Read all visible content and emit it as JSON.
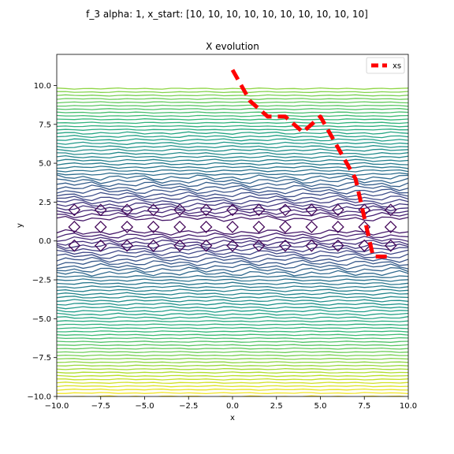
{
  "figure": {
    "suptitle": "f_3 alpha: 1, x_start: [10, 10, 10, 10, 10, 10, 10, 10, 10, 10]"
  },
  "chart_data": {
    "type": "line",
    "title": "X evolution",
    "xlabel": "x",
    "ylabel": "y",
    "xlim": [
      -10,
      10
    ],
    "ylim": [
      -10,
      12
    ],
    "xticks": [
      -10,
      -7.5,
      -5,
      -2.5,
      0,
      2.5,
      5,
      7.5,
      10
    ],
    "xtick_labels": [
      "−10.0",
      "−7.5",
      "−5.0",
      "−2.5",
      "0.0",
      "2.5",
      "5.0",
      "7.5",
      "10.0"
    ],
    "yticks": [
      -10,
      -7.5,
      -5,
      -2.5,
      0,
      2.5,
      5,
      7.5,
      10
    ],
    "ytick_labels": [
      "−10.0",
      "−7.5",
      "−5.0",
      "−2.5",
      "0.0",
      "2.5",
      "5.0",
      "7.5",
      "10.0"
    ],
    "grid": false,
    "legend_position": "top-right",
    "colormap": "viridis",
    "series": [
      {
        "name": "xs",
        "color": "#ff0000",
        "linestyle": "dashed",
        "x": [
          0,
          1,
          2,
          3,
          4,
          5,
          6,
          7,
          8,
          9
        ],
        "y": [
          11,
          9,
          8,
          8,
          7,
          8,
          6,
          4,
          -1,
          -1
        ]
      }
    ]
  }
}
